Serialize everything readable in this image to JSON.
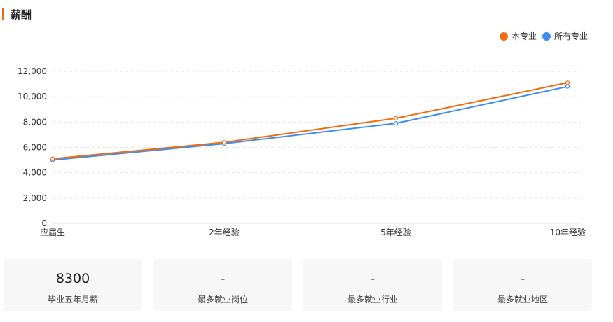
{
  "section": {
    "title": "薪酬"
  },
  "colors": {
    "accent": "#f26b0f",
    "major": "#f26b0f",
    "all": "#3b8ef0"
  },
  "chart_data": {
    "type": "line",
    "categories": [
      "应届生",
      "2年经验",
      "5年经验",
      "10年经验"
    ],
    "series": [
      {
        "name": "本专业",
        "values": [
          5100,
          6400,
          8300,
          11100
        ]
      },
      {
        "name": "所有专业",
        "values": [
          5000,
          6300,
          7900,
          10800
        ]
      }
    ],
    "ylim": [
      0,
      12000
    ],
    "yticks": [
      "0",
      "2,000",
      "4,000",
      "6,000",
      "8,000",
      "10,000",
      "12,000"
    ],
    "legend": "top-right",
    "grid": "horizontal-dashed"
  },
  "stats": [
    {
      "value": "8300",
      "label": "毕业五年月薪"
    },
    {
      "value": "-",
      "label": "最多就业岗位"
    },
    {
      "value": "-",
      "label": "最多就业行业"
    },
    {
      "value": "-",
      "label": "最多就业地区"
    }
  ]
}
